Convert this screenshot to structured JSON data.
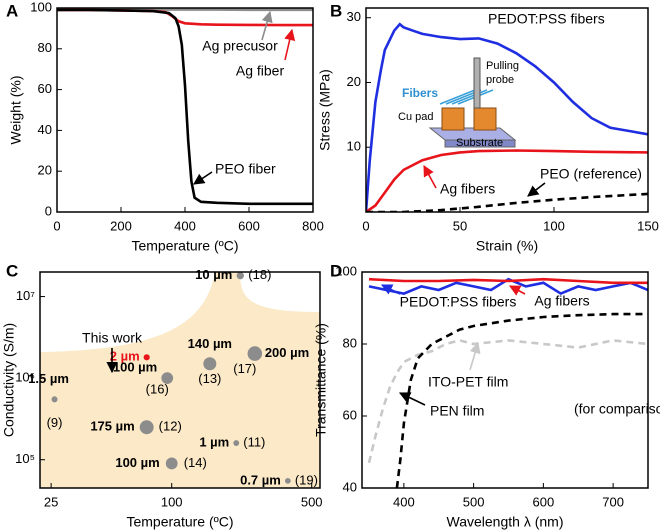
{
  "chart_data": [
    {
      "type": "line",
      "panel": "A",
      "xlabel": "Temperature (ºC)",
      "ylabel": "Weight (%)",
      "xlim": [
        0,
        800
      ],
      "ylim": [
        0,
        100
      ],
      "xticks": [
        0,
        200,
        400,
        600,
        800
      ],
      "yticks": [
        0,
        20,
        40,
        60,
        80,
        100
      ],
      "series": [
        {
          "name": "Ag precusor",
          "color": "#8c8c8c",
          "x": [
            0,
            100,
            200,
            300,
            400,
            500,
            600,
            700,
            800
          ],
          "values": [
            99.5,
            99.5,
            99.4,
            99.3,
            99.2,
            99.2,
            99.1,
            99.1,
            99.1
          ]
        },
        {
          "name": "Ag fiber",
          "color": "#e8141b",
          "x": [
            0,
            100,
            200,
            300,
            340,
            360,
            380,
            400,
            450,
            500,
            600,
            700,
            800
          ],
          "values": [
            99,
            99,
            98.8,
            98.5,
            98,
            96,
            93.5,
            92.5,
            92,
            91.8,
            91.7,
            91.6,
            91.6
          ]
        },
        {
          "name": "PEO fiber",
          "color": "#000000",
          "x": [
            0,
            100,
            200,
            300,
            350,
            370,
            380,
            390,
            400,
            410,
            420,
            430,
            450,
            500,
            600,
            700,
            800
          ],
          "values": [
            99,
            99,
            98.8,
            98.5,
            97.5,
            95,
            91,
            82,
            62,
            35,
            15,
            7,
            5,
            4.5,
            4,
            4,
            4
          ]
        }
      ]
    },
    {
      "type": "line",
      "panel": "B",
      "xlabel": "Strain (%)",
      "ylabel": "Stress (MPa)",
      "xlim": [
        0,
        150
      ],
      "ylim": [
        0,
        31.5
      ],
      "xticks": [
        0,
        50,
        100,
        150
      ],
      "yticks": [
        10,
        20,
        30
      ],
      "inset_labels": [
        "Pulling",
        "probe",
        "Fibers",
        "Cu pad",
        "Substrate"
      ],
      "series": [
        {
          "name": "PEDOT:PSS fibers",
          "color": "#1f2ee0",
          "x": [
            0,
            2,
            5,
            8,
            10,
            15,
            18,
            20,
            25,
            30,
            40,
            50,
            60,
            70,
            80,
            90,
            100,
            110,
            120,
            130,
            140,
            150
          ],
          "values": [
            0,
            8,
            17,
            22,
            25,
            28,
            29,
            28.5,
            28,
            27.5,
            27,
            26.7,
            26.8,
            26,
            24.5,
            22.5,
            20,
            17,
            14.5,
            13,
            12.5,
            12
          ]
        },
        {
          "name": "Ag fibers",
          "color": "#e8141b",
          "x": [
            0,
            5,
            10,
            15,
            20,
            30,
            40,
            50,
            60,
            80,
            100,
            120,
            150
          ],
          "values": [
            0,
            1,
            3,
            5,
            6.5,
            8,
            8.8,
            9.2,
            9.4,
            9.5,
            9.4,
            9.3,
            9.2
          ]
        },
        {
          "name": "PEO (reference)",
          "color": "#000000",
          "dashed": true,
          "x": [
            0,
            20,
            40,
            60,
            80,
            100,
            120,
            150
          ],
          "values": [
            0,
            0,
            0.3,
            0.8,
            1.4,
            1.9,
            2.3,
            2.8
          ]
        }
      ]
    },
    {
      "type": "scatter",
      "panel": "C",
      "xlabel": "Temperature (ºC)",
      "ylabel": "Conductivity (S/m)",
      "xlog": true,
      "ylog": true,
      "xlim": [
        22,
        550
      ],
      "ylim": [
        45000,
        20000000
      ],
      "xticks": [
        25,
        100,
        500
      ],
      "yticks": [
        {
          "value": 100000,
          "label": "10⁵"
        },
        {
          "value": 1000000,
          "label": "10⁶"
        },
        {
          "value": 10000000,
          "label": "10⁷"
        }
      ],
      "annotation": "This work",
      "x": [
        220,
        75,
        26,
        95,
        155,
        260,
        75,
        210,
        100,
        380
      ],
      "values": [
        18000000,
        1800000,
        550000,
        1000000,
        1500000,
        2000000,
        250000,
        160000,
        90000,
        55000
      ],
      "sizes": [
        10,
        2,
        1.5,
        100,
        140,
        200,
        175,
        1,
        100,
        0.7
      ],
      "size_labels": [
        "10 µm",
        "2 µm",
        "1.5 µm",
        "100 µm",
        "140 µm",
        "200 µm",
        "175 µm",
        "1 µm",
        "100 µm",
        "0.7 µm"
      ],
      "refs": [
        "(18)",
        null,
        "(9)",
        "(16)",
        "(13)",
        "(17)",
        "(12)",
        "(11)",
        "(14)",
        "(19)"
      ],
      "point_colors": [
        "#8c8c8c",
        "#e8141b",
        "#8c8c8c",
        "#8c8c8c",
        "#8c8c8c",
        "#8c8c8c",
        "#8c8c8c",
        "#8c8c8c",
        "#8c8c8c",
        "#8c8c8c"
      ]
    },
    {
      "type": "line",
      "panel": "D",
      "xlabel": "Wavelength λ (nm)",
      "ylabel": "Transmittance (%)",
      "xlim": [
        340,
        750
      ],
      "ylim": [
        40,
        100
      ],
      "xticks": [
        400,
        500,
        600,
        700
      ],
      "yticks": [
        40,
        60,
        80,
        100
      ],
      "annotation": "(for comparison)",
      "series": [
        {
          "name": "PEDOT:PSS fibers",
          "color": "#1f2ee0",
          "x": [
            350,
            375,
            400,
            425,
            450,
            475,
            500,
            525,
            550,
            575,
            600,
            625,
            650,
            675,
            700,
            725,
            750
          ],
          "values": [
            96,
            95,
            94,
            96,
            95,
            97,
            96,
            95,
            98,
            96,
            97,
            94,
            96,
            95,
            96,
            97,
            95
          ]
        },
        {
          "name": "Ag fibers",
          "color": "#e8141b",
          "x": [
            350,
            400,
            450,
            500,
            550,
            600,
            650,
            700,
            750
          ],
          "values": [
            98,
            97.5,
            97.5,
            97.8,
            97.5,
            98,
            97.5,
            97,
            97
          ]
        },
        {
          "name": "ITO-PET film",
          "color": "#c8c8c8",
          "dashed": true,
          "x": [
            350,
            360,
            370,
            380,
            390,
            400,
            420,
            440,
            460,
            480,
            500,
            550,
            600,
            650,
            700,
            750
          ],
          "values": [
            47,
            55,
            62,
            68,
            72,
            75,
            77,
            78,
            80,
            81,
            80,
            81,
            80,
            79,
            81,
            80
          ]
        },
        {
          "name": "PEN film",
          "color": "#000000",
          "dashed": true,
          "x": [
            390,
            395,
            400,
            410,
            420,
            440,
            460,
            480,
            500,
            550,
            600,
            650,
            700,
            750
          ],
          "values": [
            40,
            48,
            58,
            70,
            76,
            80,
            82,
            84,
            85,
            86.5,
            87.5,
            88,
            88.3,
            88.3
          ]
        }
      ]
    }
  ]
}
